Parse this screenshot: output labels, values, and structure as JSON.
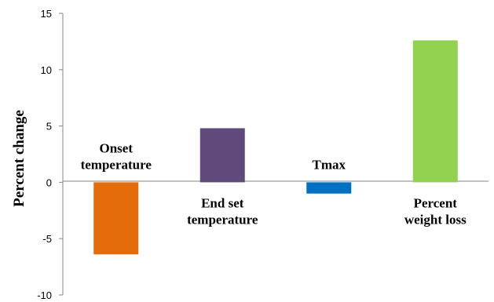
{
  "chart_data": {
    "type": "bar",
    "title": "",
    "xlabel": "",
    "ylabel": "Percent change",
    "ylim": [
      -10,
      15
    ],
    "yticks": [
      15,
      10,
      5,
      0,
      -5,
      -10
    ],
    "grid": false,
    "legend": "none",
    "categories": [
      {
        "label_lines": [
          "Onset",
          "temperature"
        ],
        "value": -6.4,
        "color": "#E46C0A",
        "label_side": "above"
      },
      {
        "label_lines": [
          "End set",
          "temperature"
        ],
        "value": 4.8,
        "color": "#604A7B",
        "label_side": "below"
      },
      {
        "label_lines": [
          "Tmax"
        ],
        "value": -1.0,
        "color": "#0070C0",
        "label_side": "above"
      },
      {
        "label_lines": [
          "Percent",
          "weight loss"
        ],
        "value": 12.6,
        "color": "#92D050",
        "label_side": "below"
      }
    ]
  }
}
